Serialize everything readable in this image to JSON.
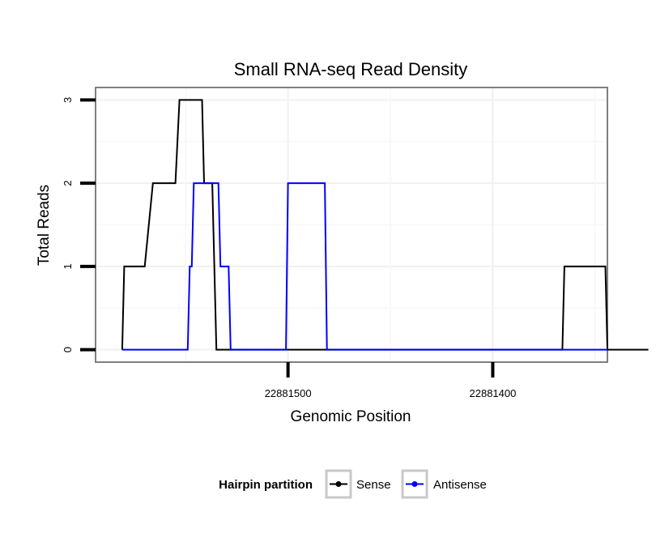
{
  "chart_data": {
    "type": "line",
    "title": "Small RNA-seq Read Density",
    "xlabel": "Genomic Position",
    "ylabel": "Total Reads",
    "x_reversed": true,
    "xlim": [
      22881594,
      22881344
    ],
    "ylim": [
      -0.15,
      3.15
    ],
    "x_ticks": [
      22881500,
      22881400
    ],
    "x_tick_labels": [
      "22881500",
      "22881400"
    ],
    "y_ticks": [
      0,
      1,
      2,
      3
    ],
    "y_tick_labels": [
      "0",
      "1",
      "2",
      "3"
    ],
    "grid": true,
    "legend_position": "bottom",
    "legend_title": "Hairpin partition",
    "series": [
      {
        "name": "Sense",
        "color": "#000000",
        "x": [
          22881581,
          22881580,
          22881570,
          22881566,
          22881555,
          22881553,
          22881542,
          22881541,
          22881537,
          22881535,
          22881533,
          22881531,
          22881366,
          22881365,
          22881345,
          22881344,
          22881324
        ],
        "y": [
          0,
          1,
          1,
          2,
          2,
          3,
          3,
          2,
          2,
          0,
          0,
          0,
          0,
          1,
          1,
          0,
          0
        ]
      },
      {
        "name": "Antisense",
        "color": "#0000ff",
        "x": [
          22881581,
          22881549,
          22881548,
          22881547,
          22881546,
          22881534,
          22881533,
          22881529,
          22881528,
          22881501,
          22881500,
          22881482,
          22881481,
          22881344
        ],
        "y": [
          0,
          0,
          1,
          1,
          2,
          2,
          1,
          1,
          0,
          0,
          2,
          2,
          0,
          0
        ]
      }
    ]
  }
}
